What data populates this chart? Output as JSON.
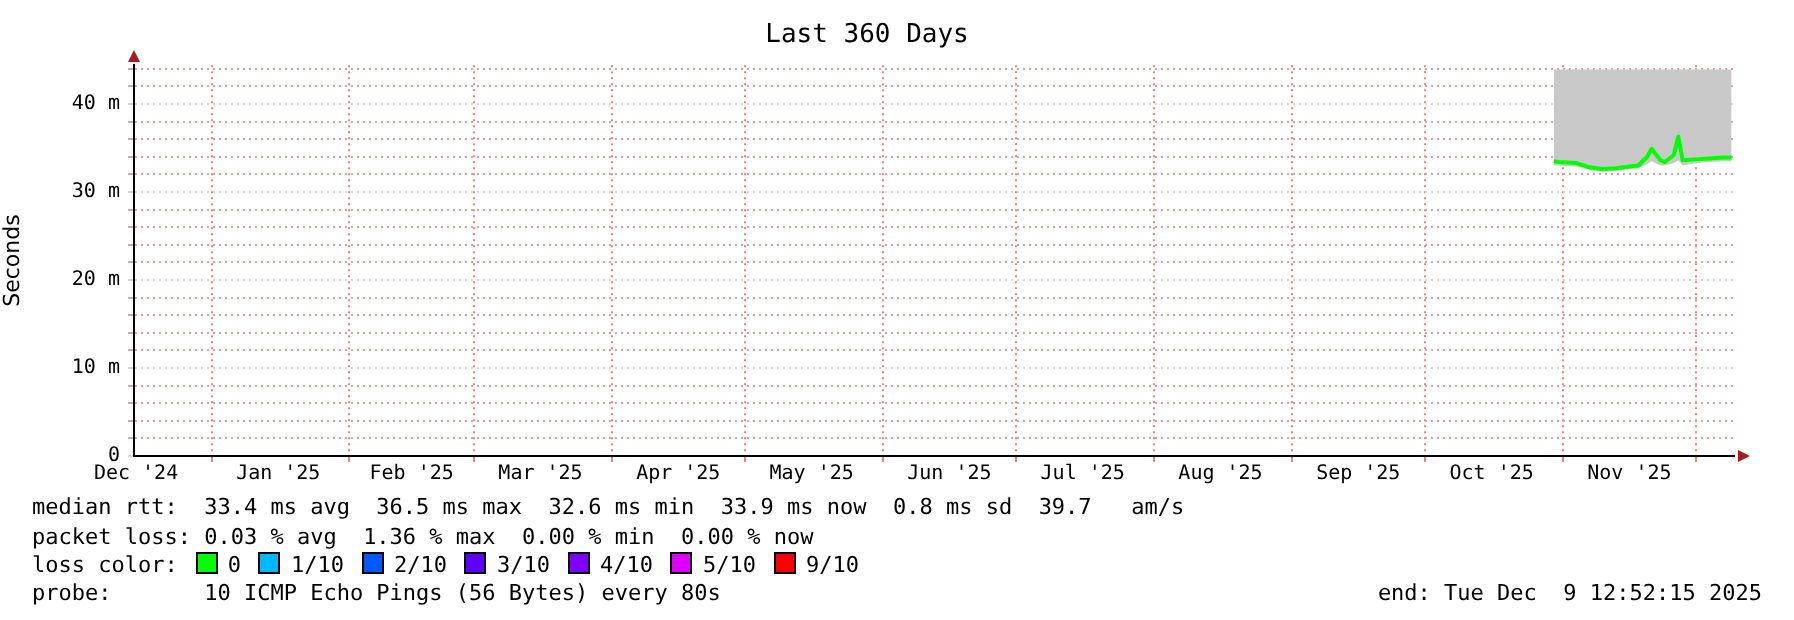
{
  "chart_data": {
    "type": "line",
    "title": "Last 360 Days",
    "ylabel": "Seconds",
    "legend_title": "loss color:",
    "legend": "bottom",
    "grid": true,
    "marker": "none",
    "line_style": "solid",
    "xlim": [
      "2024-12-14T12:52",
      "2025-12-09T12:52"
    ],
    "xticks": [
      {
        "value": "2024-12-15",
        "label": "Dec '24"
      },
      {
        "value": "2025-01-01",
        "label": null
      },
      {
        "value": "2025-01-16",
        "label": "Jan '25"
      },
      {
        "value": "2025-02-01",
        "label": null
      },
      {
        "value": "2025-02-15",
        "label": "Feb '25"
      },
      {
        "value": "2025-03-01",
        "label": null
      },
      {
        "value": "2025-03-16",
        "label": "Mar '25"
      },
      {
        "value": "2025-04-01",
        "label": null
      },
      {
        "value": "2025-04-16",
        "label": "Apr '25"
      },
      {
        "value": "2025-05-01",
        "label": null
      },
      {
        "value": "2025-05-16",
        "label": "May '25"
      },
      {
        "value": "2025-06-01",
        "label": null
      },
      {
        "value": "2025-06-16",
        "label": "Jun '25"
      },
      {
        "value": "2025-07-01",
        "label": null
      },
      {
        "value": "2025-07-16",
        "label": "Jul '25"
      },
      {
        "value": "2025-08-01",
        "label": null
      },
      {
        "value": "2025-08-16",
        "label": "Aug '25"
      },
      {
        "value": "2025-09-01",
        "label": null
      },
      {
        "value": "2025-09-16",
        "label": "Sep '25"
      },
      {
        "value": "2025-10-01",
        "label": null
      },
      {
        "value": "2025-10-16",
        "label": "Oct '25"
      },
      {
        "value": "2025-11-01",
        "label": null
      },
      {
        "value": "2025-11-16",
        "label": "Nov '25"
      },
      {
        "value": "2025-12-01",
        "label": null
      }
    ],
    "ylim": [
      0,
      44.4
    ],
    "yticks": [
      {
        "value": 0,
        "label": "0"
      },
      {
        "value": 2,
        "label": null
      },
      {
        "value": 4,
        "label": null
      },
      {
        "value": 6,
        "label": null
      },
      {
        "value": 8,
        "label": null
      },
      {
        "value": 10,
        "label": "10 m"
      },
      {
        "value": 12,
        "label": null
      },
      {
        "value": 14,
        "label": null
      },
      {
        "value": 16,
        "label": null
      },
      {
        "value": 18,
        "label": null
      },
      {
        "value": 20,
        "label": "20 m"
      },
      {
        "value": 22,
        "label": null
      },
      {
        "value": 24,
        "label": null
      },
      {
        "value": 26,
        "label": null
      },
      {
        "value": 28,
        "label": null
      },
      {
        "value": 30,
        "label": "30 m"
      },
      {
        "value": 32,
        "label": null
      },
      {
        "value": 34,
        "label": null
      },
      {
        "value": 36,
        "label": null
      },
      {
        "value": 38,
        "label": null
      },
      {
        "value": 40,
        "label": "40 m"
      },
      {
        "value": 42,
        "label": null
      },
      {
        "value": 44,
        "label": null
      }
    ],
    "x": [
      "2025-10-30",
      "2025-10-31",
      "2025-11-04",
      "2025-11-07",
      "2025-11-10",
      "2025-11-13",
      "2025-11-16",
      "2025-11-18",
      "2025-11-20",
      "2025-11-21",
      "2025-11-23",
      "2025-11-24",
      "2025-11-26",
      "2025-11-27",
      "2025-11-28",
      "2025-12-01",
      "2025-12-04",
      "2025-12-07",
      "2025-12-09"
    ],
    "series": [
      {
        "name": "0",
        "color": "#00ff00",
        "values": [
          33.5,
          33.4,
          33.3,
          32.8,
          32.6,
          32.7,
          32.9,
          33.0,
          34.0,
          34.9,
          33.6,
          33.4,
          34.2,
          36.3,
          33.6,
          33.7,
          33.8,
          33.9,
          33.9
        ],
        "lower": [
          33.0,
          33.0,
          32.9,
          32.5,
          32.3,
          32.4,
          32.6,
          32.7,
          33.2,
          33.5,
          33.0,
          33.0,
          33.3,
          33.6,
          33.0,
          33.3,
          33.4,
          33.5,
          33.5
        ],
        "upper": [
          43.9,
          43.9,
          43.9,
          43.9,
          43.9,
          43.9,
          43.9,
          43.9,
          43.9,
          43.9,
          43.9,
          43.9,
          43.9,
          43.9,
          43.9,
          43.9,
          43.9,
          43.9,
          43.9
        ]
      },
      {
        "name": "1/10",
        "color": "#00b8ff",
        "values": [
          null,
          null,
          null,
          null,
          null,
          null,
          null,
          null,
          null,
          null,
          null,
          null,
          null,
          null,
          null,
          null,
          null,
          null,
          null
        ]
      },
      {
        "name": "2/10",
        "color": "#0059ff",
        "values": [
          null,
          null,
          null,
          null,
          null,
          null,
          null,
          null,
          null,
          null,
          null,
          null,
          null,
          null,
          null,
          null,
          null,
          null,
          null
        ]
      },
      {
        "name": "3/10",
        "color": "#5e00ff",
        "values": [
          null,
          null,
          null,
          null,
          null,
          null,
          null,
          null,
          null,
          null,
          null,
          null,
          null,
          null,
          null,
          null,
          null,
          null,
          null
        ]
      },
      {
        "name": "4/10",
        "color": "#7e00ff",
        "values": [
          null,
          null,
          null,
          null,
          null,
          null,
          null,
          null,
          null,
          null,
          null,
          null,
          null,
          null,
          null,
          null,
          null,
          null,
          null
        ]
      },
      {
        "name": "5/10",
        "color": "#dd00ff",
        "values": [
          null,
          null,
          null,
          null,
          null,
          null,
          null,
          null,
          null,
          null,
          null,
          null,
          null,
          null,
          null,
          null,
          null,
          null,
          null
        ]
      },
      {
        "name": "9/10",
        "color": "#ff0000",
        "values": [
          null,
          null,
          null,
          null,
          null,
          null,
          null,
          null,
          null,
          null,
          null,
          null,
          null,
          null,
          null,
          null,
          null,
          null,
          null
        ]
      }
    ],
    "annotations": [
      "median rtt:  33.4 ms avg  36.5 ms max  32.6 ms min  33.9 ms now  0.8 ms sd  39.7   am/s",
      "packet loss: 0.03 % avg  1.36 % max  0.00 % min  0.00 % now",
      "probe:       10 ICMP Echo Pings (56 Bytes) every 80s",
      "end: Tue Dec  9 12:52:15 2025"
    ]
  }
}
